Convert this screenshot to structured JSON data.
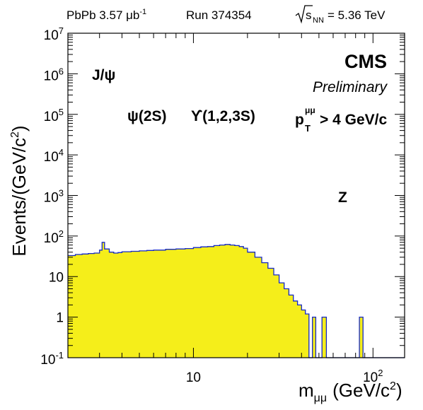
{
  "header": {
    "system": "PbPb 3.57 μb",
    "lumi_exp": "-1",
    "run": "Run 374354",
    "energy_sub": "NN",
    "energy_value": "= 5.36 TeV"
  },
  "labels": {
    "experiment": "CMS",
    "status": "Preliminary",
    "jpsi": "J/ψ",
    "psi2s": "ψ(2S)",
    "upsilon": "ϒ(1,2,3S)",
    "pt_cut_sup": "μμ",
    "pt_cut_sub": "T",
    "pt_cut_rest": "> 4 GeV/c",
    "z": "Z"
  },
  "axes": {
    "ylabel_main": "Events/(GeV/c",
    "ylabel_exp": "2",
    "xlabel_main": "m",
    "xlabel_sub": "μμ",
    "xlabel_unit": "(GeV/c",
    "xlabel_exp": "2"
  },
  "colors": {
    "fill": "#f5ee1a",
    "line": "#1428c8"
  },
  "chart_data": {
    "type": "area",
    "xscale": "log",
    "yscale": "log",
    "xlim": [
      2,
      150
    ],
    "ylim": [
      0.1,
      10000000
    ],
    "x_tick_labels": [
      {
        "value": 10,
        "label": "10"
      },
      {
        "value": 100,
        "label": "10",
        "exp": "2"
      }
    ],
    "y_tick_labels": [
      {
        "value": 0.1,
        "label": "10",
        "exp": "-1"
      },
      {
        "value": 1,
        "label": "1"
      },
      {
        "value": 10,
        "label": "10"
      },
      {
        "value": 100,
        "label": "10",
        "exp": "2"
      },
      {
        "value": 1000,
        "label": "10",
        "exp": "3"
      },
      {
        "value": 10000,
        "label": "10",
        "exp": "4"
      },
      {
        "value": 100000,
        "label": "10",
        "exp": "5"
      },
      {
        "value": 1000000,
        "label": "10",
        "exp": "6"
      },
      {
        "value": 10000000,
        "label": "10",
        "exp": "7"
      }
    ],
    "grid": false,
    "series": [
      {
        "x": [
          2.0,
          2.2,
          2.4,
          2.6,
          2.8,
          3.0,
          3.1,
          3.2,
          3.4,
          3.6,
          3.8,
          4.0,
          4.5,
          5.0,
          5.5,
          6.0,
          7.0,
          8.0,
          9.0,
          10.0,
          11.0,
          12.0,
          13.0,
          14.0,
          15.0,
          16.0,
          17.0,
          18.0,
          19.0,
          20.0,
          22.0,
          24.0,
          26.0,
          28.0,
          30.0,
          32.0,
          34.0,
          36.0,
          38.0,
          40.0,
          42.0,
          44.0,
          46.0,
          48.0,
          50.0,
          52.0,
          55.0,
          60.0,
          80.0,
          84.0,
          88.0,
          92.0,
          150.0
        ],
        "y": [
          33,
          35,
          36,
          37,
          38,
          45,
          70,
          48,
          40,
          38,
          39,
          41,
          42,
          43,
          44,
          45,
          47,
          48,
          49,
          52,
          54,
          55,
          58,
          60,
          62,
          60,
          58,
          55,
          50,
          40,
          30,
          22,
          16,
          11,
          7,
          5,
          3.5,
          2.5,
          2.0,
          1.5,
          1.2,
          0.1,
          1.0,
          0.1,
          0.1,
          1.0,
          0.1,
          0.1,
          0.1,
          1.0,
          0.1,
          0.1,
          0.1
        ]
      }
    ]
  }
}
